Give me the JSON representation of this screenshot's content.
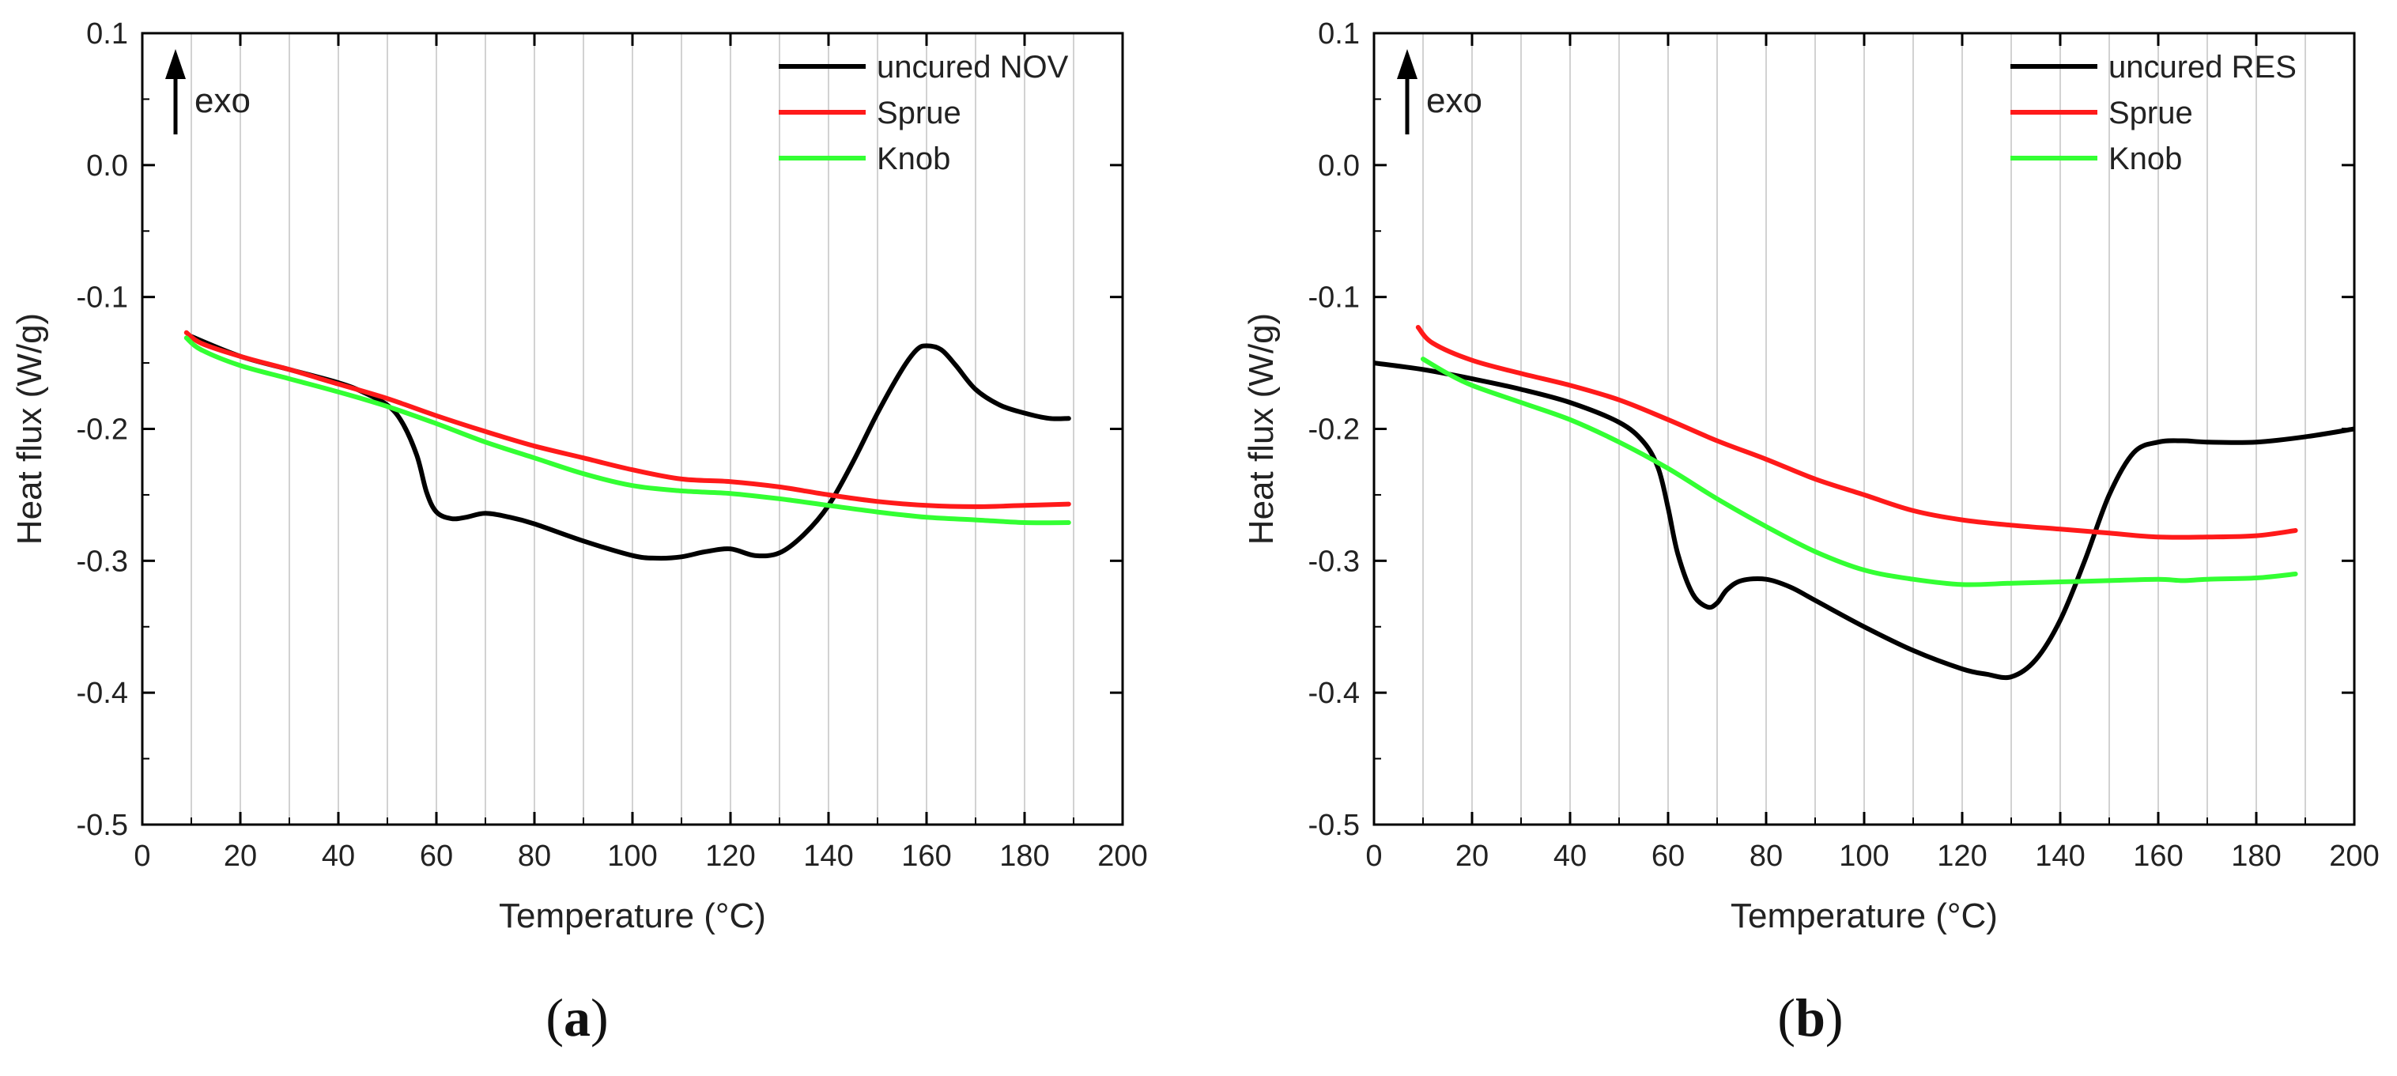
{
  "chart_data": [
    {
      "type": "line",
      "panel": "a",
      "panel_label_open": "(",
      "panel_label_letter": "a",
      "panel_label_close": ")",
      "annotation": "exo",
      "xlabel": "Temperature (°C)",
      "ylabel": "Heat flux (W/g)",
      "xlim": [
        0,
        200
      ],
      "ylim": [
        -0.5,
        0.1
      ],
      "xticks": [
        0,
        20,
        40,
        60,
        80,
        100,
        120,
        140,
        160,
        180,
        200
      ],
      "yticks": [
        -0.5,
        -0.4,
        -0.3,
        -0.2,
        -0.1,
        0.0,
        0.1
      ],
      "xtick_labels": [
        "0",
        "20",
        "40",
        "60",
        "80",
        "100",
        "120",
        "140",
        "160",
        "180",
        "200"
      ],
      "ytick_labels": [
        "-0.5",
        "-0.4",
        "-0.3",
        "-0.2",
        "-0.1",
        "0.0",
        "0.1"
      ],
      "grid": "vertical",
      "legend_position": "top-right",
      "series": [
        {
          "name": "uncured NOV",
          "color": "#000000",
          "x": [
            10,
            20,
            30,
            40,
            45,
            50,
            53,
            56,
            58,
            60,
            63,
            66,
            70,
            75,
            80,
            90,
            100,
            105,
            110,
            115,
            120,
            125,
            130,
            135,
            140,
            145,
            150,
            155,
            158,
            160,
            163,
            166,
            170,
            175,
            180,
            185,
            189
          ],
          "y": [
            -0.13,
            -0.145,
            -0.155,
            -0.165,
            -0.172,
            -0.182,
            -0.195,
            -0.22,
            -0.248,
            -0.263,
            -0.268,
            -0.267,
            -0.264,
            -0.267,
            -0.272,
            -0.285,
            -0.296,
            -0.298,
            -0.297,
            -0.293,
            -0.291,
            -0.296,
            -0.294,
            -0.28,
            -0.258,
            -0.225,
            -0.188,
            -0.155,
            -0.14,
            -0.137,
            -0.14,
            -0.152,
            -0.17,
            -0.182,
            -0.188,
            -0.192,
            -0.192
          ]
        },
        {
          "name": "Sprue",
          "color": "#ff1a1a",
          "x": [
            9,
            12,
            20,
            30,
            40,
            50,
            60,
            70,
            80,
            90,
            100,
            110,
            120,
            130,
            140,
            150,
            160,
            170,
            180,
            189
          ],
          "y": [
            -0.127,
            -0.135,
            -0.145,
            -0.155,
            -0.166,
            -0.177,
            -0.19,
            -0.202,
            -0.213,
            -0.222,
            -0.231,
            -0.238,
            -0.24,
            -0.244,
            -0.25,
            -0.255,
            -0.258,
            -0.259,
            -0.258,
            -0.257
          ]
        },
        {
          "name": "Knob",
          "color": "#33ff33",
          "x": [
            9,
            12,
            20,
            30,
            40,
            50,
            60,
            70,
            80,
            90,
            100,
            110,
            120,
            130,
            140,
            150,
            160,
            170,
            180,
            189
          ],
          "y": [
            -0.131,
            -0.14,
            -0.152,
            -0.162,
            -0.172,
            -0.183,
            -0.196,
            -0.21,
            -0.222,
            -0.234,
            -0.243,
            -0.247,
            -0.249,
            -0.253,
            -0.258,
            -0.263,
            -0.267,
            -0.269,
            -0.271,
            -0.271
          ]
        }
      ]
    },
    {
      "type": "line",
      "panel": "b",
      "panel_label_open": "(",
      "panel_label_letter": "b",
      "panel_label_close": ")",
      "annotation": "exo",
      "xlabel": "Temperature (°C)",
      "ylabel": "Heat flux (W/g)",
      "xlim": [
        0,
        200
      ],
      "ylim": [
        -0.5,
        0.1
      ],
      "xticks": [
        0,
        20,
        40,
        60,
        80,
        100,
        120,
        140,
        160,
        180,
        200
      ],
      "yticks": [
        -0.5,
        -0.4,
        -0.3,
        -0.2,
        -0.1,
        0.0,
        0.1
      ],
      "xtick_labels": [
        "0",
        "20",
        "40",
        "60",
        "80",
        "100",
        "120",
        "140",
        "160",
        "180",
        "200"
      ],
      "ytick_labels": [
        "-0.5",
        "-0.4",
        "-0.3",
        "-0.2",
        "-0.1",
        "0.0",
        "0.1"
      ],
      "grid": "vertical",
      "legend_position": "top-right",
      "series": [
        {
          "name": "uncured RES",
          "color": "#000000",
          "x": [
            0,
            10,
            20,
            30,
            40,
            50,
            55,
            58,
            60,
            62,
            65,
            68,
            70,
            72,
            75,
            80,
            85,
            90,
            100,
            110,
            120,
            125,
            130,
            135,
            140,
            145,
            150,
            155,
            160,
            165,
            170,
            180,
            190,
            200
          ],
          "y": [
            -0.15,
            -0.155,
            -0.162,
            -0.17,
            -0.18,
            -0.195,
            -0.21,
            -0.23,
            -0.26,
            -0.295,
            -0.325,
            -0.335,
            -0.332,
            -0.322,
            -0.315,
            -0.314,
            -0.32,
            -0.33,
            -0.35,
            -0.368,
            -0.382,
            -0.386,
            -0.388,
            -0.375,
            -0.345,
            -0.3,
            -0.25,
            -0.218,
            -0.21,
            -0.209,
            -0.21,
            -0.21,
            -0.206,
            -0.2
          ]
        },
        {
          "name": "Sprue",
          "color": "#ff1a1a",
          "x": [
            9,
            12,
            20,
            30,
            40,
            50,
            60,
            70,
            80,
            90,
            100,
            110,
            120,
            130,
            140,
            150,
            160,
            170,
            180,
            188
          ],
          "y": [
            -0.123,
            -0.135,
            -0.148,
            -0.158,
            -0.167,
            -0.178,
            -0.193,
            -0.209,
            -0.223,
            -0.238,
            -0.25,
            -0.262,
            -0.269,
            -0.273,
            -0.276,
            -0.279,
            -0.282,
            -0.282,
            -0.281,
            -0.277
          ]
        },
        {
          "name": "Knob",
          "color": "#33ff33",
          "x": [
            10,
            15,
            20,
            30,
            40,
            50,
            60,
            70,
            80,
            90,
            100,
            110,
            120,
            130,
            140,
            150,
            160,
            165,
            170,
            180,
            188
          ],
          "y": [
            -0.147,
            -0.158,
            -0.167,
            -0.18,
            -0.193,
            -0.21,
            -0.23,
            -0.253,
            -0.274,
            -0.293,
            -0.307,
            -0.314,
            -0.318,
            -0.317,
            -0.316,
            -0.315,
            -0.314,
            -0.315,
            -0.314,
            -0.313,
            -0.31
          ]
        }
      ]
    }
  ]
}
